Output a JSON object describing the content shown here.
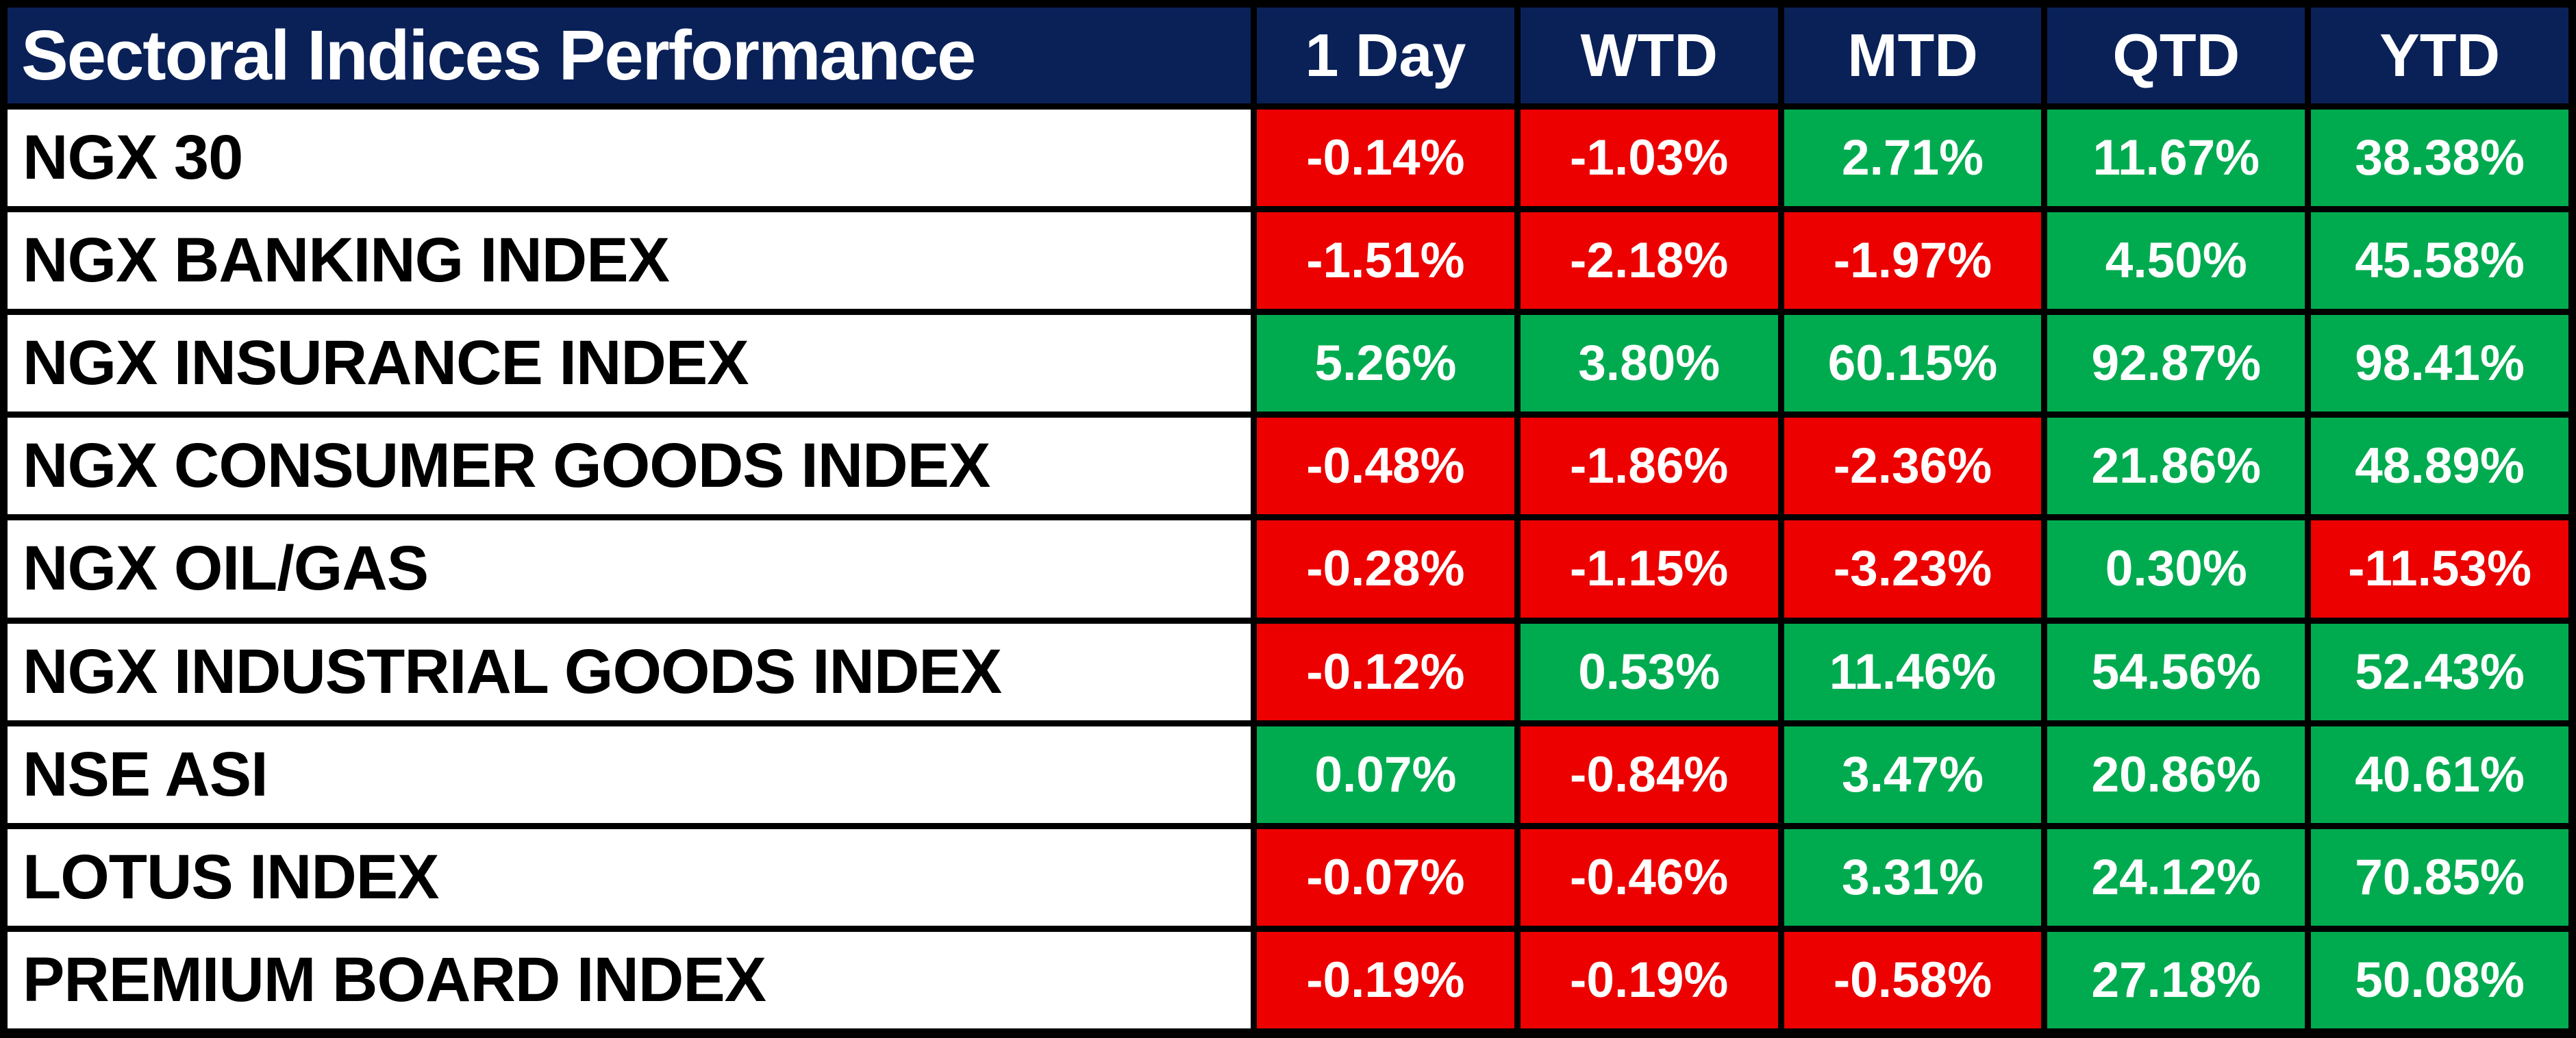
{
  "chart_data": {
    "type": "table",
    "title": "Sectoral Indices Performance",
    "columns": [
      "1 Day",
      "WTD",
      "MTD",
      "QTD",
      "YTD"
    ],
    "rows": [
      {
        "label": "NGX 30",
        "values": [
          "-0.14%",
          "-1.03%",
          "2.71%",
          "11.67%",
          "38.38%"
        ],
        "signs": [
          "neg",
          "neg",
          "pos",
          "pos",
          "pos"
        ]
      },
      {
        "label": "NGX BANKING INDEX",
        "values": [
          "-1.51%",
          "-2.18%",
          "-1.97%",
          "4.50%",
          "45.58%"
        ],
        "signs": [
          "neg",
          "neg",
          "neg",
          "pos",
          "pos"
        ]
      },
      {
        "label": "NGX INSURANCE INDEX",
        "values": [
          "5.26%",
          "3.80%",
          "60.15%",
          "92.87%",
          "98.41%"
        ],
        "signs": [
          "pos",
          "pos",
          "pos",
          "pos",
          "pos"
        ]
      },
      {
        "label": "NGX CONSUMER GOODS INDEX",
        "values": [
          "-0.48%",
          "-1.86%",
          "-2.36%",
          "21.86%",
          "48.89%"
        ],
        "signs": [
          "neg",
          "neg",
          "neg",
          "pos",
          "pos"
        ]
      },
      {
        "label": "NGX OIL/GAS",
        "values": [
          "-0.28%",
          "-1.15%",
          "-3.23%",
          "0.30%",
          "-11.53%"
        ],
        "signs": [
          "neg",
          "neg",
          "neg",
          "pos",
          "neg"
        ]
      },
      {
        "label": "NGX INDUSTRIAL GOODS INDEX",
        "values": [
          "-0.12%",
          "0.53%",
          "11.46%",
          "54.56%",
          "52.43%"
        ],
        "signs": [
          "neg",
          "pos",
          "pos",
          "pos",
          "pos"
        ]
      },
      {
        "label": "NSE ASI",
        "values": [
          "0.07%",
          "-0.84%",
          "3.47%",
          "20.86%",
          "40.61%"
        ],
        "signs": [
          "pos",
          "neg",
          "pos",
          "pos",
          "pos"
        ]
      },
      {
        "label": "LOTUS INDEX",
        "values": [
          "-0.07%",
          "-0.46%",
          "3.31%",
          "24.12%",
          "70.85%"
        ],
        "signs": [
          "neg",
          "neg",
          "pos",
          "pos",
          "pos"
        ]
      },
      {
        "label": "PREMIUM BOARD INDEX",
        "values": [
          "-0.19%",
          "-0.19%",
          "-0.58%",
          "27.18%",
          "50.08%"
        ],
        "signs": [
          "neg",
          "neg",
          "neg",
          "pos",
          "pos"
        ]
      }
    ],
    "colors": {
      "positive": "#00AB50",
      "negative": "#EC0000",
      "header_bg": "#0A2158",
      "label_bg": "#FFFFFF",
      "grid": "#000000",
      "text_light": "#FFFFFF",
      "text_dark": "#000000"
    },
    "legend_position": "none",
    "grid_on": true
  }
}
